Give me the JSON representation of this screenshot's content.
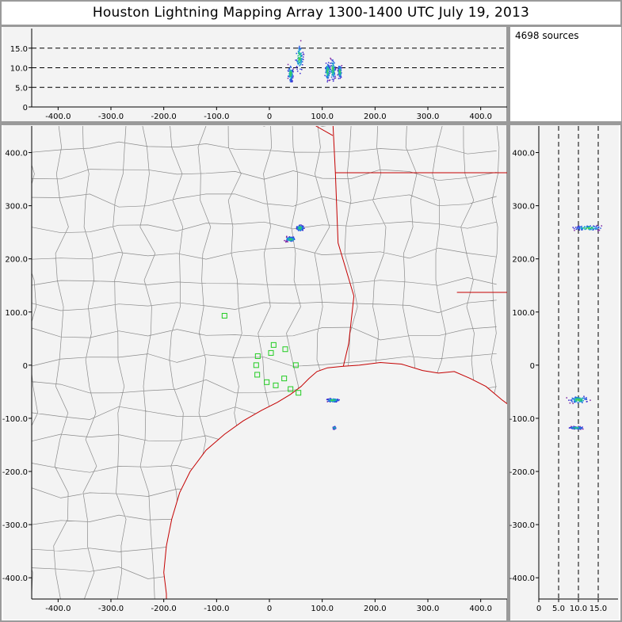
{
  "title": "Houston Lightning Mapping Array   1300-1400 UTC  July 19, 2013",
  "source_count": "4698 sources",
  "colors": {
    "background": "#f3f3f3",
    "frame": "#9a9a9a",
    "county": "#8a8a8a",
    "state": "#c40000",
    "station": "#22cc22"
  },
  "chart_data": [
    {
      "type": "scatter",
      "panel": "altitude-vs-east",
      "x_ticks": [
        "-400.0",
        "-300.0",
        "-200.0",
        "-100.0",
        "0",
        "100.0",
        "200.0",
        "300.0",
        "400.0"
      ],
      "y_ticks": [
        "0",
        "5.0",
        "10.0",
        "15.0"
      ],
      "xlim": [
        -450,
        450
      ],
      "ylim": [
        0,
        20
      ],
      "reference_lines_y": [
        5,
        10,
        15
      ],
      "clusters": [
        {
          "x": 40,
          "y": 8.5,
          "dx": 4,
          "dy": 2.0
        },
        {
          "x": 57,
          "y": 12.5,
          "dx": 6,
          "dy": 3.0
        },
        {
          "x": 110,
          "y": 9.0,
          "dx": 4,
          "dy": 2.0
        },
        {
          "x": 120,
          "y": 9.5,
          "dx": 4,
          "dy": 2.5
        },
        {
          "x": 133,
          "y": 9.0,
          "dx": 3,
          "dy": 1.5
        }
      ]
    },
    {
      "type": "scatter",
      "panel": "map-plan-view",
      "x_ticks": [
        "-400.0",
        "-300.0",
        "-200.0",
        "-100.0",
        "0",
        "100.0",
        "200.0",
        "300.0",
        "400.0"
      ],
      "y_ticks": [
        "400.0",
        "300.0",
        "200.0",
        "100.0",
        "0",
        "-100.0",
        "-200.0",
        "-300.0",
        "-400.0"
      ],
      "xlim": [
        -450,
        450
      ],
      "ylim": [
        -440,
        450
      ],
      "clusters": [
        {
          "x": 58,
          "y": 258,
          "dx": 6,
          "dy": 5
        },
        {
          "x": 40,
          "y": 237,
          "dx": 8,
          "dy": 4
        },
        {
          "x": 120,
          "y": -66,
          "dx": 10,
          "dy": 3
        },
        {
          "x": 123,
          "y": -118,
          "dx": 2,
          "dy": 2
        }
      ],
      "stations": [
        {
          "x": -85,
          "y": 93
        },
        {
          "x": -22,
          "y": 17
        },
        {
          "x": 3,
          "y": 23
        },
        {
          "x": 8,
          "y": 38
        },
        {
          "x": 30,
          "y": 30
        },
        {
          "x": -25,
          "y": 0
        },
        {
          "x": -23,
          "y": -18
        },
        {
          "x": -5,
          "y": -32
        },
        {
          "x": 12,
          "y": -38
        },
        {
          "x": 28,
          "y": -25
        },
        {
          "x": 50,
          "y": 0
        },
        {
          "x": 40,
          "y": -45
        },
        {
          "x": 55,
          "y": -52
        }
      ]
    },
    {
      "type": "scatter",
      "panel": "north-vs-altitude",
      "x_ticks": [
        "0",
        "5.0",
        "10.0",
        "15.0"
      ],
      "y_ticks": [
        "400.0",
        "300.0",
        "200.0",
        "100.0",
        "0",
        "-100.0",
        "-200.0",
        "-300.0",
        "-400.0"
      ],
      "xlim": [
        0,
        20
      ],
      "ylim": [
        -440,
        450
      ],
      "reference_lines_x": [
        5,
        10,
        15
      ],
      "clusters": [
        {
          "x": 12.5,
          "y": 258,
          "dx": 3.0,
          "dy": 4
        },
        {
          "x": 10.0,
          "y": -65,
          "dx": 2.0,
          "dy": 6
        },
        {
          "x": 9.5,
          "y": -118,
          "dx": 1.5,
          "dy": 2
        }
      ]
    }
  ]
}
